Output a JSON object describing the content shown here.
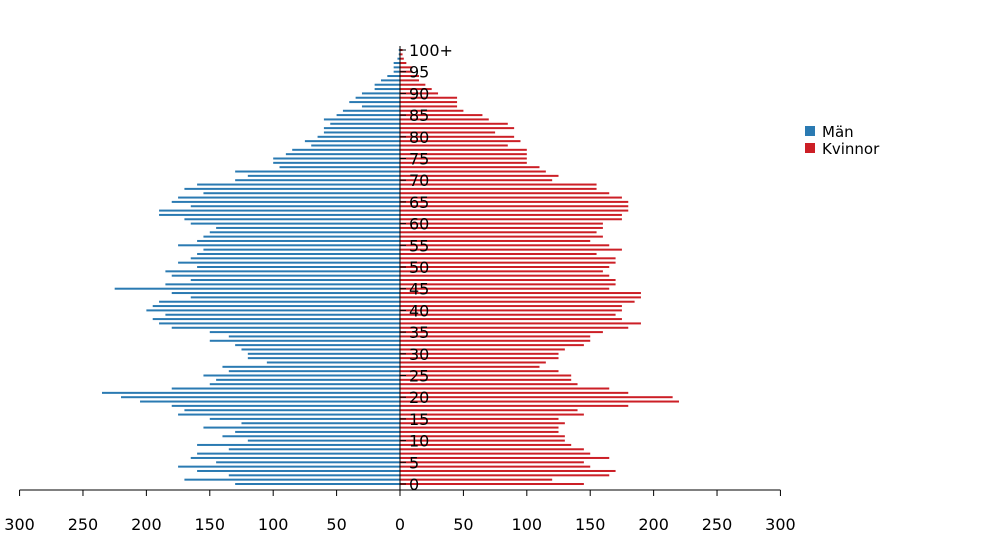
{
  "chart_data": {
    "type": "bar",
    "orientation": "horizontal",
    "layout": "population-pyramid",
    "title": "",
    "xlabel": "",
    "ylabel": "",
    "xlim": [
      -300,
      300
    ],
    "x_ticks": [
      -300,
      -250,
      -200,
      -150,
      -100,
      -50,
      0,
      50,
      100,
      150,
      200,
      250,
      300
    ],
    "x_tick_labels": [
      "300",
      "250",
      "200",
      "150",
      "100",
      "50",
      "0",
      "50",
      "100",
      "150",
      "200",
      "250",
      "300"
    ],
    "age_labels": [
      "0",
      "5",
      "10",
      "15",
      "20",
      "25",
      "30",
      "35",
      "40",
      "45",
      "50",
      "55",
      "60",
      "65",
      "70",
      "75",
      "80",
      "85",
      "90",
      "95",
      "100+"
    ],
    "age_label_positions": [
      0,
      5,
      10,
      15,
      20,
      25,
      30,
      35,
      40,
      45,
      50,
      55,
      60,
      65,
      70,
      75,
      80,
      85,
      90,
      95,
      100
    ],
    "categories": [
      "0",
      "1",
      "2",
      "3",
      "4",
      "5",
      "6",
      "7",
      "8",
      "9",
      "10",
      "11",
      "12",
      "13",
      "14",
      "15",
      "16",
      "17",
      "18",
      "19",
      "20",
      "21",
      "22",
      "23",
      "24",
      "25",
      "26",
      "27",
      "28",
      "29",
      "30",
      "31",
      "32",
      "33",
      "34",
      "35",
      "36",
      "37",
      "38",
      "39",
      "40",
      "41",
      "42",
      "43",
      "44",
      "45",
      "46",
      "47",
      "48",
      "49",
      "50",
      "51",
      "52",
      "53",
      "54",
      "55",
      "56",
      "57",
      "58",
      "59",
      "60",
      "61",
      "62",
      "63",
      "64",
      "65",
      "66",
      "67",
      "68",
      "69",
      "70",
      "71",
      "72",
      "73",
      "74",
      "75",
      "76",
      "77",
      "78",
      "79",
      "80",
      "81",
      "82",
      "83",
      "84",
      "85",
      "86",
      "87",
      "88",
      "89",
      "90",
      "91",
      "92",
      "93",
      "94",
      "95",
      "96",
      "97",
      "98",
      "99",
      "100+"
    ],
    "series": [
      {
        "name": "Män",
        "color": "#2A7AB2",
        "values": [
          130,
          170,
          135,
          160,
          175,
          145,
          165,
          160,
          135,
          160,
          120,
          140,
          130,
          155,
          125,
          150,
          175,
          170,
          180,
          205,
          220,
          235,
          180,
          150,
          145,
          155,
          135,
          140,
          105,
          120,
          120,
          125,
          130,
          150,
          135,
          150,
          180,
          190,
          195,
          185,
          200,
          195,
          190,
          165,
          180,
          225,
          185,
          165,
          180,
          185,
          160,
          175,
          165,
          160,
          155,
          175,
          160,
          155,
          150,
          145,
          165,
          170,
          190,
          190,
          165,
          180,
          175,
          155,
          170,
          160,
          130,
          120,
          130,
          95,
          100,
          100,
          90,
          85,
          70,
          75,
          65,
          60,
          60,
          55,
          60,
          50,
          45,
          30,
          40,
          35,
          30,
          20,
          20,
          15,
          10,
          5,
          5,
          5,
          2,
          1,
          1
        ]
      },
      {
        "name": "Kvinnor",
        "color": "#CC1F26",
        "values": [
          145,
          120,
          165,
          170,
          150,
          145,
          165,
          150,
          145,
          135,
          130,
          130,
          125,
          125,
          130,
          125,
          145,
          140,
          180,
          220,
          215,
          180,
          165,
          140,
          135,
          135,
          125,
          110,
          115,
          125,
          125,
          130,
          145,
          150,
          150,
          160,
          180,
          190,
          175,
          170,
          175,
          175,
          185,
          190,
          190,
          165,
          170,
          170,
          165,
          160,
          165,
          170,
          170,
          155,
          175,
          165,
          150,
          160,
          155,
          160,
          160,
          175,
          175,
          180,
          180,
          180,
          175,
          165,
          155,
          155,
          120,
          125,
          115,
          110,
          100,
          100,
          100,
          100,
          85,
          95,
          90,
          75,
          90,
          85,
          70,
          65,
          50,
          45,
          45,
          45,
          30,
          25,
          20,
          15,
          15,
          10,
          10,
          5,
          3,
          2,
          2
        ]
      }
    ],
    "legend_position": "right",
    "grid": false
  }
}
